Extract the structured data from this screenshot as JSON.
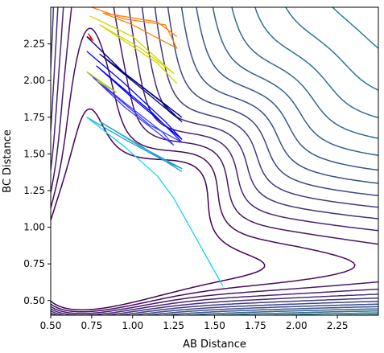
{
  "chart_data": {
    "type": "contour",
    "xlabel": "AB Distance",
    "ylabel": "BC Distance",
    "xlim": [
      0.5,
      2.5
    ],
    "ylim": [
      0.4,
      2.5
    ],
    "x_ticks": [
      "0.50",
      "0.75",
      "1.00",
      "1.25",
      "1.50",
      "1.75",
      "2.00",
      "2.25"
    ],
    "y_ticks": [
      "0.50",
      "0.75",
      "1.00",
      "1.25",
      "1.50",
      "1.75",
      "2.00",
      "2.25"
    ],
    "grid": false,
    "legend": "none",
    "colormap": "viridis",
    "contour_levels": 30,
    "potential_surface": {
      "well_x": 0.74,
      "well_y": 0.74,
      "description": "LEPS-type potential energy surface with valley along both axes"
    },
    "trajectories": [
      {
        "color": "#ff0000",
        "points": [
          [
            0.72,
            2.3
          ],
          [
            0.75,
            2.28
          ],
          [
            0.73,
            2.32
          ],
          [
            0.76,
            2.27
          ]
        ]
      },
      {
        "color": "#ff7f0e",
        "points": [
          [
            0.75,
            2.5
          ],
          [
            0.95,
            2.42
          ],
          [
            1.2,
            2.38
          ],
          [
            1.27,
            2.22
          ],
          [
            1.0,
            2.38
          ],
          [
            0.82,
            2.46
          ],
          [
            1.15,
            2.4
          ],
          [
            1.27,
            2.3
          ]
        ]
      },
      {
        "color": "#d4d400",
        "points": [
          [
            0.74,
            2.44
          ],
          [
            1.0,
            2.3
          ],
          [
            1.25,
            2.05
          ],
          [
            1.05,
            2.22
          ],
          [
            0.8,
            2.38
          ],
          [
            1.15,
            2.12
          ],
          [
            1.27,
            1.98
          ]
        ]
      },
      {
        "color": "#000080",
        "points": [
          [
            0.72,
            2.3
          ],
          [
            0.95,
            2.05
          ],
          [
            1.18,
            1.85
          ],
          [
            1.3,
            1.72
          ],
          [
            1.05,
            1.95
          ],
          [
            0.8,
            2.18
          ],
          [
            1.15,
            1.88
          ],
          [
            1.3,
            1.75
          ]
        ]
      },
      {
        "color": "#0000ff",
        "points": [
          [
            0.72,
            2.2
          ],
          [
            0.95,
            1.98
          ],
          [
            1.2,
            1.72
          ],
          [
            1.3,
            1.6
          ],
          [
            1.0,
            1.88
          ],
          [
            0.78,
            2.1
          ],
          [
            1.12,
            1.78
          ],
          [
            1.3,
            1.58
          ]
        ]
      },
      {
        "color": "#3c3cff",
        "points": [
          [
            0.72,
            2.06
          ],
          [
            0.95,
            1.85
          ],
          [
            1.18,
            1.65
          ],
          [
            1.25,
            1.56
          ],
          [
            0.95,
            1.82
          ],
          [
            0.76,
            2.02
          ],
          [
            1.1,
            1.7
          ],
          [
            1.3,
            1.58
          ]
        ]
      },
      {
        "color": "#b4d400",
        "points": [
          [
            0.72,
            2.06
          ],
          [
            0.9,
            1.92
          ],
          [
            0.78,
            2.0
          ]
        ]
      },
      {
        "color": "#1fa0c8",
        "points": [
          [
            0.72,
            1.75
          ],
          [
            0.95,
            1.6
          ],
          [
            1.2,
            1.45
          ],
          [
            1.3,
            1.4
          ],
          [
            1.05,
            1.55
          ],
          [
            0.8,
            1.72
          ],
          [
            1.1,
            1.52
          ],
          [
            1.3,
            1.38
          ]
        ]
      },
      {
        "color": "#19d1f0",
        "points": [
          [
            0.72,
            1.75
          ],
          [
            0.95,
            1.55
          ],
          [
            1.15,
            1.35
          ],
          [
            1.25,
            1.2
          ],
          [
            1.35,
            1.0
          ],
          [
            1.45,
            0.8
          ],
          [
            1.55,
            0.6
          ]
        ]
      }
    ]
  }
}
